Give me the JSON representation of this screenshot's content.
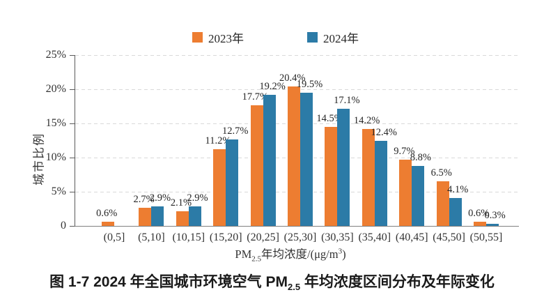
{
  "chart_data": {
    "type": "bar",
    "title": "",
    "categories": [
      "(0,5]",
      "(5,10]",
      "(10,15]",
      "(15,20]",
      "(20,25]",
      "(25,30]",
      "(30,35]",
      "(35,40]",
      "(40,45]",
      "(45,50]",
      "(50,55]"
    ],
    "series": [
      {
        "name": "2023年",
        "color": "#ED7D31",
        "values": [
          0.6,
          2.7,
          2.1,
          11.2,
          17.7,
          20.4,
          14.5,
          14.2,
          9.7,
          6.5,
          0.6
        ]
      },
      {
        "name": "2024年",
        "color": "#2C7BA7",
        "values": [
          null,
          2.9,
          2.9,
          12.7,
          19.2,
          19.5,
          17.1,
          12.4,
          8.8,
          4.1,
          0.3
        ]
      }
    ],
    "value_suffix": "%",
    "ylabel": "城市比例",
    "xlabel": "PM2.5年均浓度/(μg/m³)",
    "ylim": [
      0,
      25
    ],
    "grid": "horizontal-dashed",
    "legend_position": "top"
  },
  "y_axis": {
    "label": "城市比例",
    "ticks": [
      "25%",
      "20%",
      "15%",
      "10%",
      "5%",
      "0"
    ]
  },
  "x_axis": {
    "title_pm": "PM",
    "title_pm_sub": "2.5",
    "title_mid": "年均浓度/(μg/m",
    "title_sup": "3",
    "title_end": ")"
  },
  "caption": {
    "prefix": "图 1-7  2024 年全国城市环境空气 PM",
    "sub": "2.5",
    "suffix": " 年均浓度区间分布及年际变化"
  }
}
